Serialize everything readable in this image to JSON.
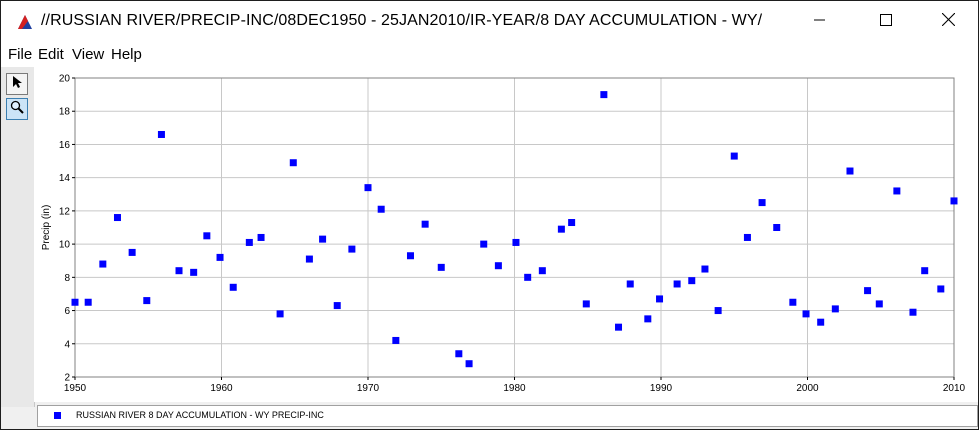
{
  "window": {
    "title": "//RUSSIAN RIVER/PRECIP-INC/08DEC1950 - 25JAN2010/IR-YEAR/8 DAY ACCUMULATION - WY/",
    "icon": "chart-logo-icon",
    "controls": [
      "minimize-icon",
      "maximize-icon",
      "close-icon"
    ]
  },
  "menu": {
    "items": [
      "File",
      "Edit",
      "View",
      "Help"
    ]
  },
  "toolbar": {
    "tools": [
      "pointer-arrow-icon",
      "zoom-magnifier-icon"
    ]
  },
  "colors": {
    "series": "#0000ff",
    "grid": "#c8c8c8"
  },
  "chart_data": {
    "type": "scatter",
    "title": "",
    "xlabel": "",
    "ylabel": "Precip (in)",
    "xlim": [
      1950,
      2010
    ],
    "ylim": [
      2,
      20
    ],
    "xticks": [
      1950,
      1960,
      1970,
      1980,
      1990,
      2000,
      2010
    ],
    "yticks": [
      2,
      4,
      6,
      8,
      10,
      12,
      14,
      16,
      18,
      20
    ],
    "grid": true,
    "legend_position": "bottom",
    "series": [
      {
        "name": "RUSSIAN RIVER 8 DAY ACCUMULATION - WY PRECIP-INC",
        "marker": "square",
        "color": "#0000ff",
        "points": [
          [
            1950.0,
            6.5
          ],
          [
            1950.9,
            6.5
          ],
          [
            1951.9,
            8.8
          ],
          [
            1952.9,
            11.6
          ],
          [
            1953.9,
            9.5
          ],
          [
            1954.9,
            6.6
          ],
          [
            1955.9,
            16.6
          ],
          [
            1957.1,
            8.4
          ],
          [
            1958.1,
            8.3
          ],
          [
            1959.0,
            10.5
          ],
          [
            1959.9,
            9.2
          ],
          [
            1960.8,
            7.4
          ],
          [
            1961.9,
            10.1
          ],
          [
            1962.7,
            10.4
          ],
          [
            1964.0,
            5.8
          ],
          [
            1964.9,
            14.9
          ],
          [
            1966.0,
            9.1
          ],
          [
            1966.9,
            10.3
          ],
          [
            1967.9,
            6.3
          ],
          [
            1968.9,
            9.7
          ],
          [
            1970.0,
            13.4
          ],
          [
            1970.9,
            12.1
          ],
          [
            1971.9,
            4.2
          ],
          [
            1972.9,
            9.3
          ],
          [
            1973.9,
            11.2
          ],
          [
            1975.0,
            8.6
          ],
          [
            1976.2,
            3.4
          ],
          [
            1976.9,
            2.8
          ],
          [
            1977.9,
            10.0
          ],
          [
            1978.9,
            8.7
          ],
          [
            1980.1,
            10.1
          ],
          [
            1980.9,
            8.0
          ],
          [
            1981.9,
            8.4
          ],
          [
            1983.2,
            10.9
          ],
          [
            1983.9,
            11.3
          ],
          [
            1984.9,
            6.4
          ],
          [
            1986.1,
            19.0
          ],
          [
            1987.1,
            5.0
          ],
          [
            1987.9,
            7.6
          ],
          [
            1989.1,
            5.5
          ],
          [
            1989.9,
            6.7
          ],
          [
            1991.1,
            7.6
          ],
          [
            1992.1,
            7.8
          ],
          [
            1993.0,
            8.5
          ],
          [
            1993.9,
            6.0
          ],
          [
            1995.0,
            15.3
          ],
          [
            1995.9,
            10.4
          ],
          [
            1996.9,
            12.5
          ],
          [
            1997.9,
            11.0
          ],
          [
            1999.0,
            6.5
          ],
          [
            1999.9,
            5.8
          ],
          [
            2000.9,
            5.3
          ],
          [
            2001.9,
            6.1
          ],
          [
            2002.9,
            14.4
          ],
          [
            2004.1,
            7.2
          ],
          [
            2004.9,
            6.4
          ],
          [
            2006.1,
            13.2
          ],
          [
            2007.2,
            5.9
          ],
          [
            2008.0,
            8.4
          ],
          [
            2009.1,
            7.3
          ],
          [
            2010.0,
            12.6
          ]
        ]
      }
    ]
  }
}
